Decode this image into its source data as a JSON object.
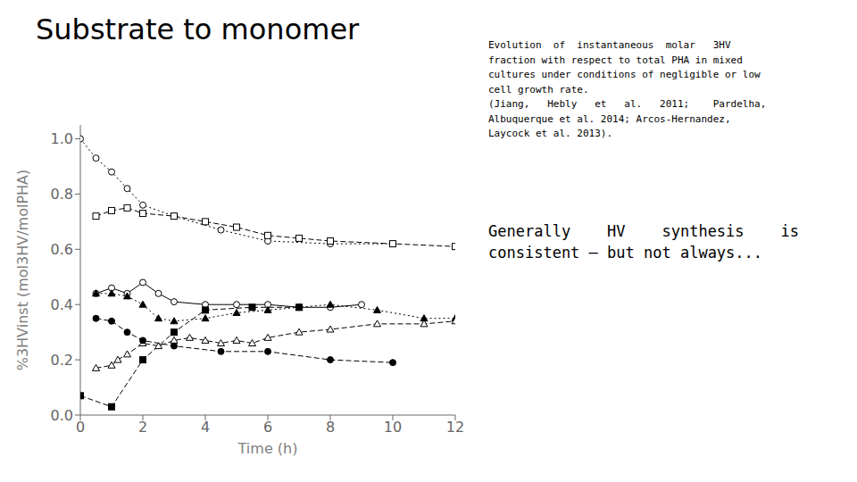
{
  "chart_data": {
    "type": "line",
    "title": "Substrate to monomer",
    "xlabel": "Time (h)",
    "ylabel": "%3HVinst (mol3HV/molPHA)",
    "annotations": [
      "Evolution  of  instantaneous  molar   3HV\nfraction with respect to total PHA in mixed\ncultures under conditions of negligible or low\ncell growth rate.\n(Jiang,   Hebly   et   al.   2011;    Pardelha,\nAlbuquerque et al. 2014; Arcos-Hernandez,\nLaycock et al. 2013).",
      "Generally    HV    synthesis    is\nconsistent – but not always..."
    ],
    "xlim": [
      0,
      12
    ],
    "ylim": [
      0.0,
      1.05
    ],
    "xticks": [
      0,
      2,
      4,
      6,
      8,
      10,
      12
    ],
    "yticks": [
      {
        "value": 0.0,
        "label": "0.0"
      },
      0.2,
      0.4,
      0.6,
      0.8,
      {
        "value": 1.0,
        "label": "1.0"
      }
    ],
    "grid": false,
    "series": [
      {
        "color": "black",
        "marker": "open_circle",
        "line_style": "dotted",
        "x": [
          0,
          0.5,
          1.0,
          1.5,
          2.0,
          3.0,
          4.5,
          6.0,
          8.0,
          10.0
        ],
        "values": [
          1.0,
          0.93,
          0.88,
          0.82,
          0.76,
          0.72,
          0.67,
          0.63,
          0.62,
          0.62
        ]
      },
      {
        "color": "black",
        "marker": "open_square",
        "line_style": "dashed",
        "x": [
          0.5,
          1.0,
          1.5,
          2.0,
          3.0,
          4.0,
          5.0,
          6.0,
          7.0,
          8.0,
          10.0,
          12.0
        ],
        "values": [
          0.72,
          0.74,
          0.75,
          0.73,
          0.72,
          0.7,
          0.68,
          0.65,
          0.64,
          0.63,
          0.62,
          0.61
        ]
      },
      {
        "color": "black",
        "marker": "open_circle",
        "line_style": "solid",
        "x": [
          0.5,
          1.0,
          1.5,
          2.0,
          2.5,
          3.0,
          4.0,
          5.0,
          6.0,
          7.0,
          8.0,
          9.0
        ],
        "values": [
          0.44,
          0.46,
          0.44,
          0.48,
          0.44,
          0.41,
          0.4,
          0.4,
          0.4,
          0.39,
          0.39,
          0.4
        ]
      },
      {
        "color": "black",
        "marker": "triangle",
        "line_style": "dotted",
        "x": [
          0.5,
          1.0,
          1.5,
          2.0,
          2.5,
          3.0,
          4.0,
          5.0,
          6.0,
          7.0,
          8.0,
          9.5,
          11.0,
          12.0
        ],
        "values": [
          0.44,
          0.44,
          0.43,
          0.4,
          0.35,
          0.34,
          0.35,
          0.37,
          0.38,
          0.39,
          0.4,
          0.38,
          0.35,
          0.35
        ]
      },
      {
        "color": "black",
        "marker": "open_triangle",
        "line_style": "dashed",
        "x": [
          0.5,
          1.0,
          1.2,
          1.5,
          2.0,
          2.5,
          3.0,
          3.5,
          4.0,
          4.5,
          5.0,
          5.5,
          6.0,
          7.0,
          8.0,
          9.5,
          11.0,
          12.0
        ],
        "values": [
          0.17,
          0.18,
          0.2,
          0.22,
          0.26,
          0.25,
          0.27,
          0.28,
          0.27,
          0.26,
          0.27,
          0.26,
          0.28,
          0.3,
          0.31,
          0.33,
          0.33,
          0.34
        ]
      },
      {
        "color": "black",
        "marker": "circle",
        "line_style": "dashed",
        "x": [
          0.5,
          1.0,
          1.5,
          2.0,
          3.0,
          4.5,
          6.0,
          8.0,
          10.0
        ],
        "values": [
          0.35,
          0.34,
          0.3,
          0.27,
          0.25,
          0.23,
          0.23,
          0.2,
          0.19
        ]
      },
      {
        "color": "black",
        "marker": "square",
        "line_style": "dashed",
        "x": [
          0.0,
          1.0,
          2.0,
          3.0,
          4.0,
          5.5,
          7.0
        ],
        "values": [
          0.07,
          0.03,
          0.2,
          0.3,
          0.38,
          0.39,
          0.39
        ]
      }
    ]
  }
}
